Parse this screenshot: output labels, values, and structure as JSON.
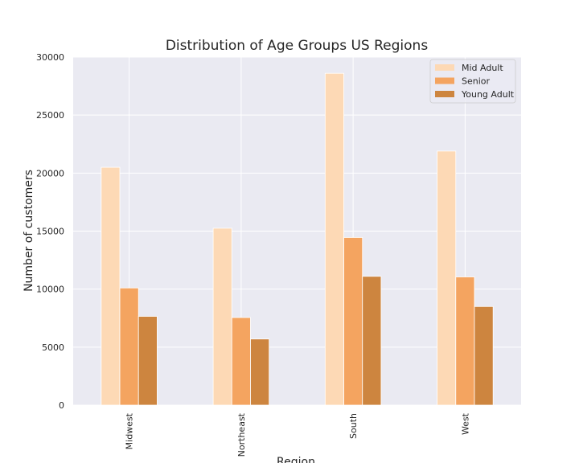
{
  "chart_data": {
    "type": "bar",
    "title": "Distribution of Age Groups US Regions",
    "xlabel": "Region",
    "ylabel": "Number of customers",
    "categories": [
      "Midwest",
      "Northeast",
      "South",
      "West"
    ],
    "ylim": [
      0,
      30000
    ],
    "yticks": [
      "0",
      "5000",
      "10000",
      "15000",
      "20000",
      "25000",
      "30000"
    ],
    "grid": true,
    "legend_position": "top-right",
    "series": [
      {
        "name": "Mid Adult",
        "color": "#fdd9b5",
        "values": [
          20500,
          15250,
          28600,
          21900
        ]
      },
      {
        "name": "Senior",
        "color": "#f4a460",
        "values": [
          10100,
          7550,
          14450,
          11050
        ]
      },
      {
        "name": "Young Adult",
        "color": "#cd853f",
        "values": [
          7650,
          5700,
          11100,
          8500
        ]
      }
    ]
  }
}
